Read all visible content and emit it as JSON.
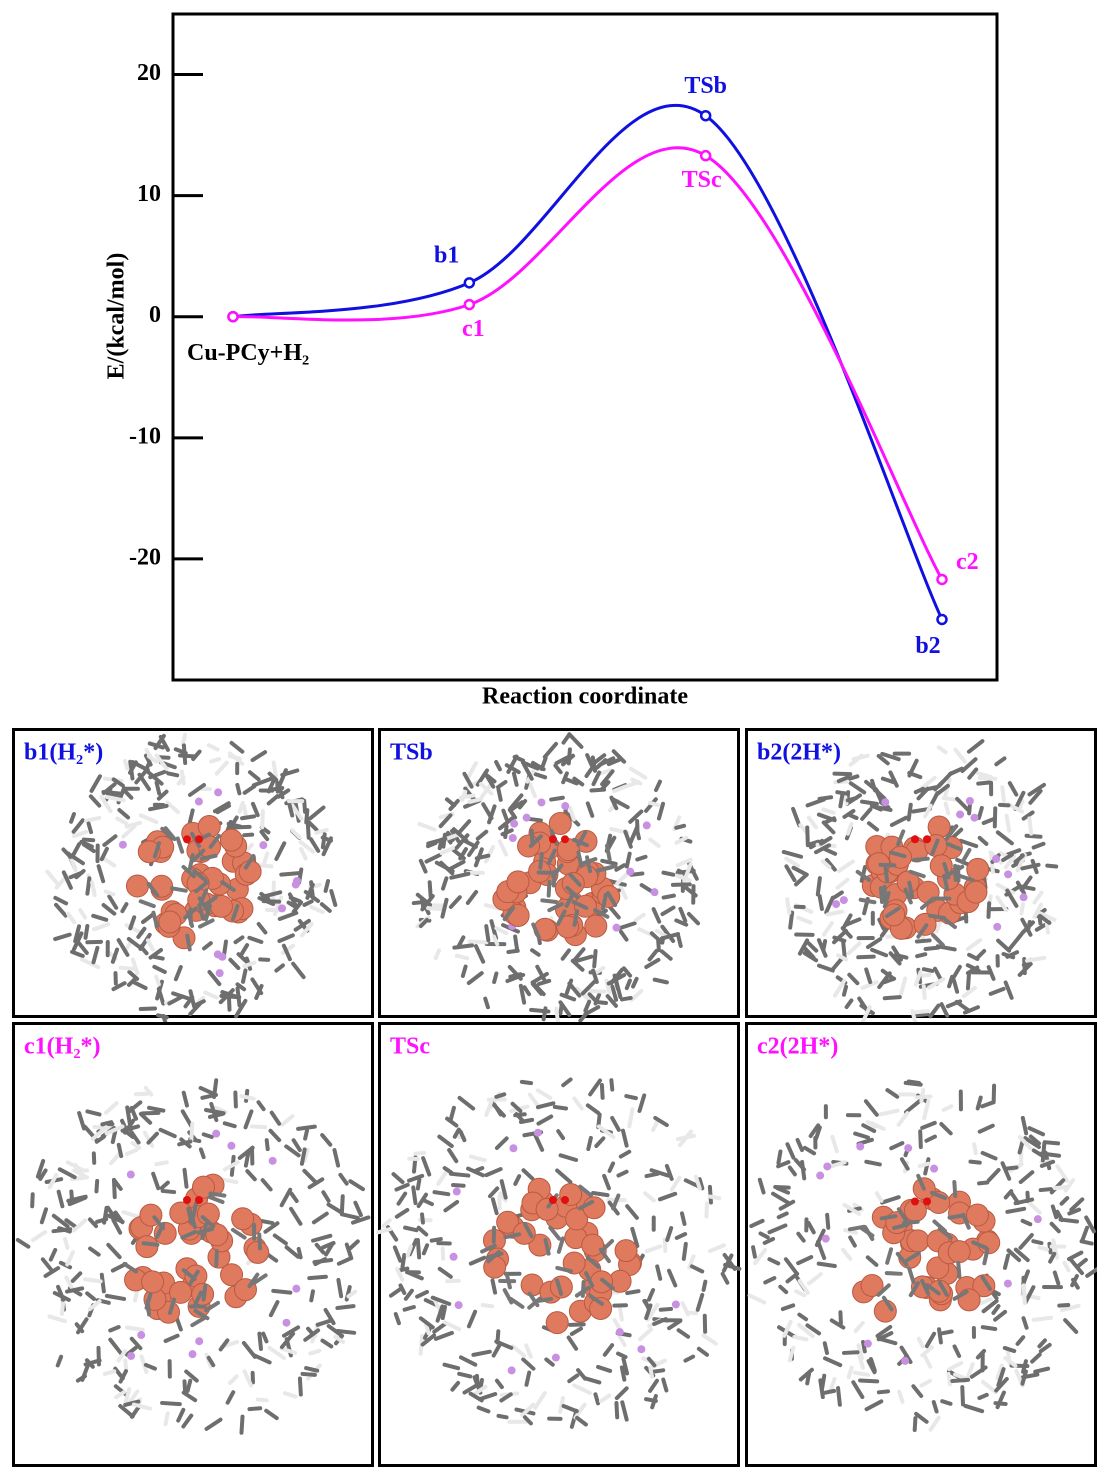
{
  "chart_data": {
    "type": "line",
    "x_label": "Reaction coordinate",
    "y_label": "E/(kcal/mol)",
    "categories": [
      null,
      null,
      null,
      null
    ],
    "ylim": [
      -30,
      25
    ],
    "yticks": [
      20,
      10,
      0,
      -10,
      -20
    ],
    "series": [
      {
        "color": "#1010e0",
        "values": [
          0,
          2.8,
          16.6,
          -25
        ],
        "point_labels": [
          "Cu-PCy+H₂",
          "b1",
          "TSb",
          "b2"
        ]
      },
      {
        "color": "#ff10ff",
        "values": [
          0,
          1,
          13.3,
          -21.7
        ],
        "point_labels": [
          null,
          "c1",
          "TSc",
          "c2"
        ]
      }
    ]
  },
  "panels": [
    {
      "label": "b1(H₂*)",
      "color": "#1010e0"
    },
    {
      "label": "TSb",
      "color": "#1010e0"
    },
    {
      "label": "b2(2H*)",
      "color": "#1010e0"
    },
    {
      "label": "c1(H₂*)",
      "color": "#ff10ff"
    },
    {
      "label": "TSc",
      "color": "#ff10ff"
    },
    {
      "label": "c2(2H*)",
      "color": "#ff10ff"
    }
  ]
}
